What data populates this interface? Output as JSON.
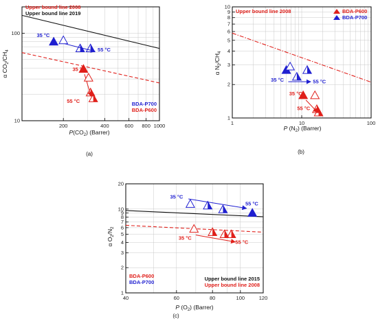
{
  "colors": {
    "red": "#e0201b",
    "blue": "#1f1fd0",
    "black": "#111111",
    "grid": "#c8c8c8"
  },
  "chart_data": [
    {
      "type": "scatter",
      "caption": "(a)",
      "xlabel_italic": "P",
      "xlabel_rest": "(CO",
      "xlabel_sub": "2",
      "xlabel_tail": ") (Barrer)",
      "ylabel_main": "α CO",
      "ylabel_sub1": "2",
      "ylabel_mid": "/CH",
      "ylabel_sub2": "4",
      "xscale": "log",
      "yscale": "log",
      "xlim": [
        100,
        1000
      ],
      "ylim": [
        10,
        200
      ],
      "xticks": [
        {
          "v": 200,
          "label": "200"
        },
        {
          "v": 400,
          "label": "400"
        },
        {
          "v": 600,
          "label": "600"
        },
        {
          "v": 800,
          "label": "800"
        },
        {
          "v": 1000,
          "label": "1000"
        }
      ],
      "yticks": [
        {
          "v": 10,
          "label": "10"
        },
        {
          "v": 100,
          "label": "100"
        }
      ],
      "grid": true,
      "lines": [
        {
          "name": "Upper bound line 2008",
          "color": "red",
          "style": "dashed",
          "x": [
            100,
            1000
          ],
          "y": [
            60,
            27
          ]
        },
        {
          "name": "Upper bound line 2019",
          "color": "black",
          "style": "solid",
          "x": [
            100,
            1000
          ],
          "y": [
            160,
            67
          ]
        }
      ],
      "series": [
        {
          "name": "BDA-P700",
          "color": "blue",
          "points": [
            {
              "x": 170,
              "y": 80,
              "fill": "full"
            },
            {
              "x": 200,
              "y": 83,
              "fill": "open"
            },
            {
              "x": 265,
              "y": 67,
              "fill": "half"
            },
            {
              "x": 315,
              "y": 67,
              "fill": "half"
            }
          ]
        },
        {
          "name": "BDA-P600",
          "color": "red",
          "points": [
            {
              "x": 280,
              "y": 39,
              "fill": "full"
            },
            {
              "x": 305,
              "y": 31,
              "fill": "open"
            },
            {
              "x": 315,
              "y": 21,
              "fill": "half"
            },
            {
              "x": 330,
              "y": 18,
              "fill": "half"
            }
          ]
        }
      ],
      "arrows": [
        {
          "color": "blue",
          "from": [
            190,
            78
          ],
          "to": [
            340,
            62
          ]
        },
        {
          "color": "red",
          "from": [
            285,
            34
          ],
          "to": [
            318,
            19
          ]
        }
      ],
      "annotations": [
        {
          "text": "35 °C",
          "color": "blue",
          "x": 128,
          "y": 90
        },
        {
          "text": "55 °C",
          "color": "blue",
          "x": 355,
          "y": 62
        },
        {
          "text": "35 °C",
          "color": "red",
          "x": 233,
          "y": 37
        },
        {
          "text": "55 °C",
          "color": "red",
          "x": 212,
          "y": 16
        }
      ],
      "legend_lines": [
        "Upper bound line 2008",
        "Upper bound line 2019"
      ],
      "legend_series": [
        "BDA-P700",
        "BDA-P600"
      ]
    },
    {
      "type": "scatter",
      "caption": "(b)",
      "xlabel_italic": "P",
      "xlabel_rest": " (N",
      "xlabel_sub": "2",
      "xlabel_tail": ") (Barrer)",
      "ylabel_main": "α N",
      "ylabel_sub1": "2",
      "ylabel_mid": "/CH",
      "ylabel_sub2": "4",
      "xscale": "log",
      "yscale": "log",
      "xlim": [
        1,
        100
      ],
      "ylim": [
        1,
        10
      ],
      "xticks": [
        {
          "v": 1,
          "label": "1"
        },
        {
          "v": 10,
          "label": "10"
        },
        {
          "v": 100,
          "label": "100"
        }
      ],
      "yticks": [
        {
          "v": 1,
          "label": "1"
        },
        {
          "v": 2,
          "label": "2"
        },
        {
          "v": 3,
          "label": "3"
        },
        {
          "v": 4,
          "label": "4"
        },
        {
          "v": 5,
          "label": "5"
        },
        {
          "v": 6,
          "label": "6"
        },
        {
          "v": 7,
          "label": "7"
        },
        {
          "v": 8,
          "label": "8"
        },
        {
          "v": 9,
          "label": "9"
        },
        {
          "v": 10,
          "label": "10"
        }
      ],
      "grid": true,
      "lines": [
        {
          "name": "Upper bound line 2008",
          "color": "red",
          "style": "dashdot",
          "x": [
            1,
            100
          ],
          "y": [
            5.8,
            2.1
          ]
        }
      ],
      "series": [
        {
          "name": "BDA-P600",
          "color": "red",
          "points": [
            {
              "x": 10.5,
              "y": 1.6,
              "fill": "full"
            },
            {
              "x": 15.5,
              "y": 1.6,
              "fill": "open"
            },
            {
              "x": 16.5,
              "y": 1.2,
              "fill": "half"
            },
            {
              "x": 17.5,
              "y": 1.12,
              "fill": "half"
            }
          ]
        },
        {
          "name": "BDA-P700",
          "color": "blue",
          "points": [
            {
              "x": 6.0,
              "y": 2.7,
              "fill": "full"
            },
            {
              "x": 6.8,
              "y": 2.9,
              "fill": "open"
            },
            {
              "x": 12.0,
              "y": 2.7,
              "fill": "half"
            },
            {
              "x": 8.5,
              "y": 2.35,
              "fill": "half"
            }
          ]
        }
      ],
      "arrows": [
        {
          "color": "blue",
          "from": [
            6.4,
            2.12
          ],
          "to": [
            13.5,
            2.12
          ]
        },
        {
          "color": "red",
          "from": [
            11.5,
            1.45
          ],
          "to": [
            17.0,
            1.12
          ]
        }
      ],
      "annotations": [
        {
          "text": "35 °C",
          "color": "blue",
          "x": 3.6,
          "y": 2.12
        },
        {
          "text": "55 °C",
          "color": "blue",
          "x": 14.5,
          "y": 2.05
        },
        {
          "text": "35 °C",
          "color": "red",
          "x": 6.6,
          "y": 1.6
        },
        {
          "text": "55 °C",
          "color": "red",
          "x": 8.6,
          "y": 1.18
        }
      ],
      "legend_lines": [
        "Upper bound line 2008"
      ],
      "legend_series": [
        "BDA-P600",
        "BDA-P700"
      ]
    },
    {
      "type": "scatter",
      "caption": "(c)",
      "xlabel_italic": "P",
      "xlabel_rest": " (O",
      "xlabel_sub": "2",
      "xlabel_tail": ") (Barrer)",
      "ylabel_main": "α O",
      "ylabel_sub1": "2",
      "ylabel_mid": "/N",
      "ylabel_sub2": "2",
      "xscale": "log",
      "yscale": "log",
      "xlim": [
        40,
        120
      ],
      "ylim": [
        1,
        20
      ],
      "xticks": [
        {
          "v": 40,
          "label": "40"
        },
        {
          "v": 60,
          "label": "60"
        },
        {
          "v": 80,
          "label": "80"
        },
        {
          "v": 100,
          "label": "100"
        },
        {
          "v": 120,
          "label": "120"
        }
      ],
      "yticks": [
        {
          "v": 1,
          "label": "1"
        },
        {
          "v": 2,
          "label": "2"
        },
        {
          "v": 3,
          "label": "3"
        },
        {
          "v": 4,
          "label": "4"
        },
        {
          "v": 5,
          "label": "5"
        },
        {
          "v": 6,
          "label": "6"
        },
        {
          "v": 7,
          "label": "7"
        },
        {
          "v": 8,
          "label": "8"
        },
        {
          "v": 9,
          "label": "9"
        },
        {
          "v": 10,
          "label": "10"
        },
        {
          "v": 20,
          "label": "20"
        }
      ],
      "grid": true,
      "lines": [
        {
          "name": "Upper bound line 2015",
          "color": "black",
          "style": "solid",
          "x": [
            40,
            120
          ],
          "y": [
            9.6,
            8.1
          ]
        },
        {
          "name": "Upper bound line 2008",
          "color": "red",
          "style": "dashed",
          "x": [
            40,
            120
          ],
          "y": [
            6.4,
            5.3
          ]
        }
      ],
      "series": [
        {
          "name": "BDA-P700",
          "color": "blue",
          "points": [
            {
              "x": 67,
              "y": 11.5,
              "fill": "open"
            },
            {
              "x": 77,
              "y": 11.0,
              "fill": "half"
            },
            {
              "x": 87,
              "y": 9.9,
              "fill": "half"
            },
            {
              "x": 110,
              "y": 9.0,
              "fill": "full"
            }
          ]
        },
        {
          "name": "BDA-P600",
          "color": "red",
          "points": [
            {
              "x": 69,
              "y": 5.8,
              "fill": "open"
            },
            {
              "x": 80,
              "y": 5.3,
              "fill": "half"
            },
            {
              "x": 88,
              "y": 5.0,
              "fill": "half"
            },
            {
              "x": 93,
              "y": 5.0,
              "fill": "half"
            }
          ]
        }
      ],
      "arrows": [
        {
          "color": "blue",
          "from": [
            66,
            13.2
          ],
          "to": [
            105,
            10.2
          ]
        },
        {
          "color": "red",
          "from": [
            70,
            4.9
          ],
          "to": [
            96,
            4.05
          ]
        }
      ],
      "annotations": [
        {
          "text": "35 °C",
          "color": "blue",
          "x": 57,
          "y": 13.3
        },
        {
          "text": "55 °C",
          "color": "blue",
          "x": 104,
          "y": 11.1
        },
        {
          "text": "35 °C",
          "color": "red",
          "x": 61,
          "y": 4.3
        },
        {
          "text": "55 °C",
          "color": "red",
          "x": 96,
          "y": 3.85
        }
      ],
      "legend_lines": [
        "Upper bound line 2015",
        "Upper bound line 2008"
      ],
      "legend_series": [
        "BDA-P600",
        "BDA-P700"
      ]
    }
  ]
}
